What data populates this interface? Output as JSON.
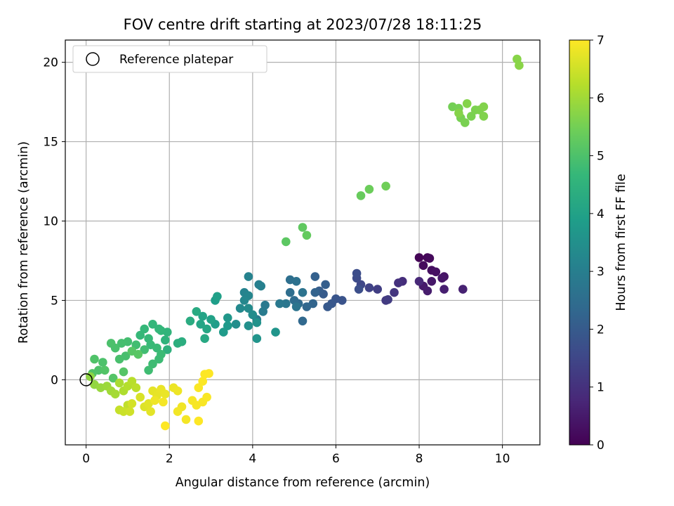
{
  "chart_data": {
    "type": "scatter",
    "title": "FOV centre drift starting at 2023/07/28 18:11:25",
    "xlabel": "Angular distance from reference (arcmin)",
    "ylabel": "Rotation from reference (arcmin)",
    "xlim": [
      -0.5,
      10.9
    ],
    "ylim": [
      -4.1,
      21.4
    ],
    "xticks": [
      0,
      2,
      4,
      6,
      8,
      10
    ],
    "yticks": [
      0,
      5,
      10,
      15,
      20
    ],
    "grid": true,
    "legend": {
      "placement": "top-left",
      "entries": [
        {
          "label": "Reference platepar",
          "marker": "open-circle"
        }
      ]
    },
    "reference_point": {
      "x": 0,
      "y": 0
    },
    "colorbar": {
      "label": "Hours from first FF file",
      "range": [
        0,
        7
      ],
      "ticks": [
        0,
        1,
        2,
        3,
        4,
        5,
        6,
        7
      ],
      "colormap": "viridis",
      "stops": [
        "#440154",
        "#482878",
        "#3e4989",
        "#31688e",
        "#26828e",
        "#1f9e89",
        "#35b779",
        "#6ece58",
        "#b5de2b",
        "#fde725"
      ]
    },
    "points": [
      [
        8.0,
        7.7,
        0.05
      ],
      [
        8.2,
        7.7,
        0.1
      ],
      [
        8.25,
        7.65,
        0.15
      ],
      [
        8.1,
        7.2,
        0.2
      ],
      [
        8.3,
        6.9,
        0.25
      ],
      [
        8.4,
        6.8,
        0.3
      ],
      [
        8.6,
        6.5,
        0.35
      ],
      [
        8.55,
        6.4,
        0.4
      ],
      [
        8.3,
        6.2,
        0.45
      ],
      [
        8.1,
        5.9,
        0.5
      ],
      [
        8.2,
        5.6,
        0.55
      ],
      [
        8.6,
        5.7,
        0.6
      ],
      [
        9.05,
        5.7,
        0.65
      ],
      [
        8.0,
        6.2,
        0.8
      ],
      [
        7.6,
        6.2,
        0.9
      ],
      [
        7.5,
        6.1,
        1.0
      ],
      [
        7.4,
        5.5,
        1.1
      ],
      [
        7.2,
        5.0,
        1.2
      ],
      [
        7.25,
        5.05,
        1.25
      ],
      [
        7.0,
        5.7,
        1.3
      ],
      [
        6.8,
        5.8,
        1.4
      ],
      [
        6.6,
        6.0,
        1.5
      ],
      [
        6.5,
        6.4,
        1.6
      ],
      [
        6.5,
        6.7,
        1.65
      ],
      [
        6.55,
        5.7,
        1.7
      ],
      [
        6.15,
        5.0,
        1.8
      ],
      [
        6.0,
        5.1,
        1.85
      ],
      [
        5.9,
        4.8,
        1.9
      ],
      [
        5.8,
        4.6,
        1.95
      ],
      [
        5.7,
        5.4,
        2.0
      ],
      [
        5.6,
        5.6,
        2.05
      ],
      [
        5.75,
        6.0,
        2.1
      ],
      [
        5.5,
        6.5,
        2.15
      ],
      [
        5.5,
        5.5,
        2.2
      ],
      [
        5.45,
        4.8,
        2.25
      ],
      [
        5.3,
        4.6,
        2.3
      ],
      [
        5.2,
        3.7,
        2.35
      ],
      [
        5.1,
        4.8,
        2.4
      ],
      [
        5.0,
        5.0,
        2.45
      ],
      [
        4.9,
        5.5,
        2.5
      ],
      [
        4.9,
        6.3,
        2.55
      ],
      [
        5.05,
        6.2,
        2.6
      ],
      [
        5.2,
        5.5,
        2.65
      ],
      [
        5.05,
        4.6,
        2.7
      ],
      [
        4.8,
        4.8,
        2.75
      ],
      [
        4.65,
        4.8,
        2.8
      ],
      [
        4.3,
        4.7,
        2.85
      ],
      [
        4.25,
        4.3,
        2.9
      ],
      [
        4.1,
        3.8,
        2.95
      ],
      [
        4.15,
        6.0,
        3.0
      ],
      [
        4.2,
        5.9,
        3.05
      ],
      [
        3.9,
        6.5,
        3.1
      ],
      [
        3.8,
        5.5,
        3.15
      ],
      [
        3.9,
        5.3,
        3.2
      ],
      [
        3.8,
        5.0,
        3.25
      ],
      [
        3.7,
        4.5,
        3.3
      ],
      [
        3.9,
        4.5,
        3.35
      ],
      [
        4.0,
        4.1,
        3.4
      ],
      [
        3.6,
        3.5,
        3.45
      ],
      [
        3.9,
        3.4,
        3.5
      ],
      [
        4.1,
        3.6,
        3.55
      ],
      [
        4.1,
        2.6,
        3.6
      ],
      [
        4.55,
        3.0,
        3.65
      ],
      [
        3.4,
        3.9,
        3.7
      ],
      [
        3.4,
        3.4,
        3.75
      ],
      [
        3.3,
        3.0,
        3.8
      ],
      [
        3.1,
        3.5,
        3.85
      ],
      [
        3.1,
        5.0,
        3.9
      ],
      [
        3.15,
        5.25,
        3.95
      ],
      [
        3.0,
        3.8,
        4.0
      ],
      [
        2.8,
        4.0,
        4.05
      ],
      [
        2.75,
        3.5,
        4.1
      ],
      [
        2.9,
        3.2,
        4.15
      ],
      [
        2.85,
        2.6,
        4.2
      ],
      [
        2.65,
        4.3,
        4.25
      ],
      [
        2.5,
        3.7,
        4.3
      ],
      [
        2.3,
        2.4,
        4.35
      ],
      [
        2.2,
        2.3,
        4.4
      ],
      [
        1.95,
        1.9,
        4.45
      ],
      [
        1.9,
        2.5,
        4.5
      ],
      [
        1.95,
        3.0,
        4.55
      ],
      [
        1.8,
        3.1,
        4.6
      ],
      [
        1.75,
        3.2,
        4.62
      ],
      [
        1.6,
        3.5,
        4.64
      ],
      [
        1.4,
        3.2,
        4.66
      ],
      [
        1.3,
        2.8,
        4.68
      ],
      [
        1.5,
        2.6,
        4.7
      ],
      [
        1.55,
        2.2,
        4.72
      ],
      [
        1.7,
        2.0,
        4.74
      ],
      [
        1.8,
        1.6,
        4.76
      ],
      [
        1.75,
        1.3,
        4.78
      ],
      [
        1.6,
        1.0,
        4.8
      ],
      [
        1.5,
        0.6,
        4.82
      ],
      [
        1.4,
        1.9,
        4.84
      ],
      [
        1.2,
        2.2,
        4.86
      ],
      [
        1.0,
        2.4,
        4.88
      ],
      [
        0.85,
        2.3,
        4.9
      ],
      [
        0.95,
        1.5,
        4.92
      ],
      [
        0.8,
        1.3,
        4.94
      ],
      [
        0.7,
        2.0,
        4.96
      ],
      [
        0.6,
        2.3,
        4.98
      ],
      [
        0.4,
        1.1,
        5.0
      ],
      [
        0.3,
        0.6,
        5.02
      ],
      [
        0.2,
        1.3,
        5.04
      ],
      [
        0.15,
        0.4,
        5.06
      ],
      [
        0.45,
        0.6,
        5.08
      ],
      [
        0.65,
        0.1,
        5.1
      ],
      [
        0.9,
        0.5,
        5.12
      ],
      [
        1.1,
        1.8,
        5.14
      ],
      [
        1.25,
        1.6,
        5.16
      ],
      [
        4.8,
        8.7,
        5.2
      ],
      [
        5.2,
        9.6,
        5.25
      ],
      [
        5.3,
        9.1,
        5.3
      ],
      [
        6.6,
        11.6,
        5.35
      ],
      [
        6.8,
        12.0,
        5.4
      ],
      [
        7.2,
        12.2,
        5.45
      ],
      [
        8.8,
        17.2,
        5.5
      ],
      [
        8.95,
        17.1,
        5.52
      ],
      [
        9.0,
        16.5,
        5.54
      ],
      [
        9.1,
        16.2,
        5.56
      ],
      [
        9.25,
        16.6,
        5.58
      ],
      [
        9.35,
        17.0,
        5.6
      ],
      [
        9.45,
        17.0,
        5.62
      ],
      [
        9.55,
        16.6,
        5.64
      ],
      [
        9.55,
        17.2,
        5.66
      ],
      [
        9.15,
        17.4,
        5.68
      ],
      [
        8.95,
        16.8,
        5.7
      ],
      [
        10.35,
        20.2,
        5.72
      ],
      [
        10.4,
        19.8,
        5.74
      ],
      [
        0.1,
        0.2,
        5.8
      ],
      [
        0.2,
        -0.3,
        5.85
      ],
      [
        0.35,
        -0.5,
        5.9
      ],
      [
        0.5,
        -0.4,
        5.95
      ],
      [
        0.6,
        -0.7,
        6.0
      ],
      [
        0.7,
        -0.9,
        6.05
      ],
      [
        0.8,
        -0.2,
        6.1
      ],
      [
        0.9,
        -0.7,
        6.15
      ],
      [
        1.0,
        -0.4,
        6.2
      ],
      [
        1.1,
        -0.1,
        6.25
      ],
      [
        1.2,
        -0.5,
        6.3
      ],
      [
        1.0,
        -1.6,
        6.35
      ],
      [
        0.8,
        -1.9,
        6.4
      ],
      [
        0.9,
        -2.0,
        6.45
      ],
      [
        1.05,
        -2.0,
        6.5
      ],
      [
        1.1,
        -1.5,
        6.55
      ],
      [
        1.3,
        -1.1,
        6.6
      ],
      [
        1.4,
        -1.7,
        6.65
      ],
      [
        1.5,
        -1.5,
        6.7
      ],
      [
        1.55,
        -2.0,
        6.72
      ],
      [
        1.6,
        -0.7,
        6.74
      ],
      [
        1.7,
        -1.0,
        6.76
      ],
      [
        1.8,
        -0.6,
        6.78
      ],
      [
        1.9,
        -0.9,
        6.8
      ],
      [
        2.1,
        -0.5,
        6.82
      ],
      [
        2.2,
        -0.7,
        6.84
      ],
      [
        2.3,
        -1.7,
        6.86
      ],
      [
        2.2,
        -2.0,
        6.88
      ],
      [
        2.4,
        -2.5,
        6.9
      ],
      [
        2.55,
        -1.3,
        6.92
      ],
      [
        2.65,
        -1.6,
        6.94
      ],
      [
        2.8,
        -1.4,
        6.95
      ],
      [
        2.9,
        -1.1,
        6.96
      ],
      [
        2.7,
        -0.5,
        6.97
      ],
      [
        2.8,
        -0.1,
        6.98
      ],
      [
        2.85,
        0.35,
        6.99
      ],
      [
        2.95,
        0.4,
        7.0
      ],
      [
        1.9,
        -2.9,
        7.0
      ],
      [
        2.7,
        -2.6,
        7.0
      ],
      [
        1.85,
        -1.4,
        6.9
      ],
      [
        1.65,
        -1.3,
        6.85
      ]
    ]
  }
}
